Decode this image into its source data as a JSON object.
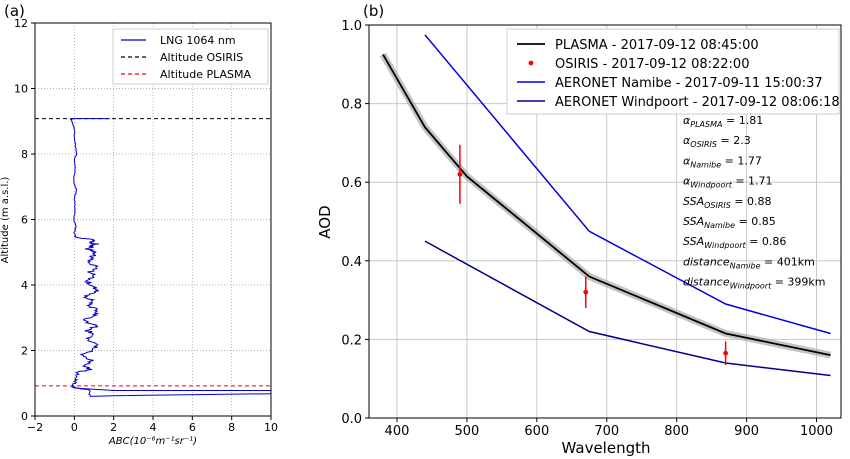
{
  "chart_data": [
    {
      "type": "line",
      "panel_label": "(a)",
      "xlabel": "ABC(10⁻⁶m⁻¹sr⁻¹)",
      "ylabel": "Altitude (m a.s.l.)",
      "xlim": [
        -2,
        10
      ],
      "ylim": [
        0,
        12
      ],
      "xticks": [
        -2,
        0,
        2,
        4,
        6,
        8,
        10
      ],
      "yticks": [
        0,
        2,
        4,
        6,
        8,
        10,
        12
      ],
      "grid": true,
      "legend_position": "top-right",
      "series": [
        {
          "name": "LNG 1064 nm",
          "color": "#0000cc",
          "x": [
            0.8,
            0.8,
            0.1,
            -0.1,
            0.05,
            0.1,
            0.2,
            0.8,
            0.5,
            1.0,
            0.3,
            0.9,
            1.2,
            0.6,
            1.0,
            0.7,
            1.1,
            0.5,
            0.9,
            1.3,
            0.8,
            1.0,
            0.6,
            1.2,
            0.9,
            0.7,
            1.0,
            0.8,
            1.1,
            0.6,
            0.9,
            1.0,
            0.7,
            0.9,
            1.1,
            0.8,
            1.0,
            0.9,
            0.5,
            0.1,
            0.0,
            0.1,
            -0.05,
            0.05,
            0.0,
            0.1,
            -0.05,
            0.05,
            0.0,
            0.1,
            0.05,
            0.0,
            0.0,
            -0.1,
            -0.15,
            -0.1,
            -0.1,
            1.8
          ],
          "y": [
            0.6,
            0.8,
            0.85,
            0.9,
            1.05,
            1.2,
            1.35,
            1.4,
            1.55,
            1.7,
            1.85,
            2.0,
            2.15,
            2.3,
            2.45,
            2.6,
            2.75,
            2.9,
            3.05,
            3.2,
            3.35,
            3.5,
            3.65,
            3.8,
            3.95,
            4.1,
            4.25,
            4.4,
            4.55,
            4.7,
            4.85,
            5.0,
            5.1,
            5.2,
            5.25,
            5.3,
            5.35,
            5.4,
            5.42,
            5.45,
            5.6,
            5.8,
            6.0,
            6.3,
            6.6,
            6.9,
            7.2,
            7.5,
            7.8,
            8.0,
            8.3,
            8.6,
            8.8,
            8.95,
            9.05,
            9.07,
            9.08,
            9.08
          ]
        },
        {
          "name": "Altitude OSIRIS",
          "color": "#000000",
          "dashed": true,
          "y_const": 9.08
        },
        {
          "name": "Altitude PLASMA",
          "color": "#ff0000",
          "dashed": true,
          "y_const": 0.92
        }
      ]
    },
    {
      "type": "line",
      "panel_label": "(b)",
      "xlabel": "Wavelength",
      "ylabel": "AOD",
      "xlim": [
        360,
        1035
      ],
      "ylim": [
        0.0,
        1.0
      ],
      "xticks": [
        400,
        500,
        600,
        700,
        800,
        900,
        1000
      ],
      "yticks": [
        0.0,
        0.2,
        0.4,
        0.6,
        0.8,
        1.0
      ],
      "grid": true,
      "legend_position": "top-right",
      "series": [
        {
          "name": "PLASMA - 2017-09-12 08:45:00",
          "color": "#000000",
          "band_color": "#b0b0b0",
          "x": [
            380,
            440,
            500,
            675,
            870,
            1020
          ],
          "y": [
            0.925,
            0.74,
            0.615,
            0.36,
            0.215,
            0.16
          ]
        },
        {
          "name": "OSIRIS - 2017-09-12 08:22:00",
          "color": "#ff0000",
          "marker": "point",
          "x": [
            490,
            670,
            870
          ],
          "y": [
            0.62,
            0.32,
            0.165
          ],
          "yerr": [
            0.075,
            0.04,
            0.03
          ]
        },
        {
          "name": "AERONET Namibe - 2017-09-11 15:00:37",
          "color": "#0000dd",
          "x": [
            440,
            675,
            870,
            1020
          ],
          "y": [
            0.975,
            0.475,
            0.29,
            0.215
          ]
        },
        {
          "name": "AERONET Windpoort - 2017-09-12 08:06:18",
          "color": "#00008b",
          "x": [
            440,
            675,
            870,
            1020
          ],
          "y": [
            0.45,
            0.22,
            0.14,
            0.108
          ]
        }
      ],
      "annotations": [
        "αPLASMA = 1.81",
        "αOSIRIS = 2.3",
        "αNamibe = 1.77",
        "αWindpoort = 1.71",
        "SSAOSIRIS = 0.88",
        "SSANamibe = 0.85",
        "SSAWindpoort = 0.86",
        "distanceNamibe = 401km",
        "distanceWindpoort = 399km"
      ]
    }
  ]
}
